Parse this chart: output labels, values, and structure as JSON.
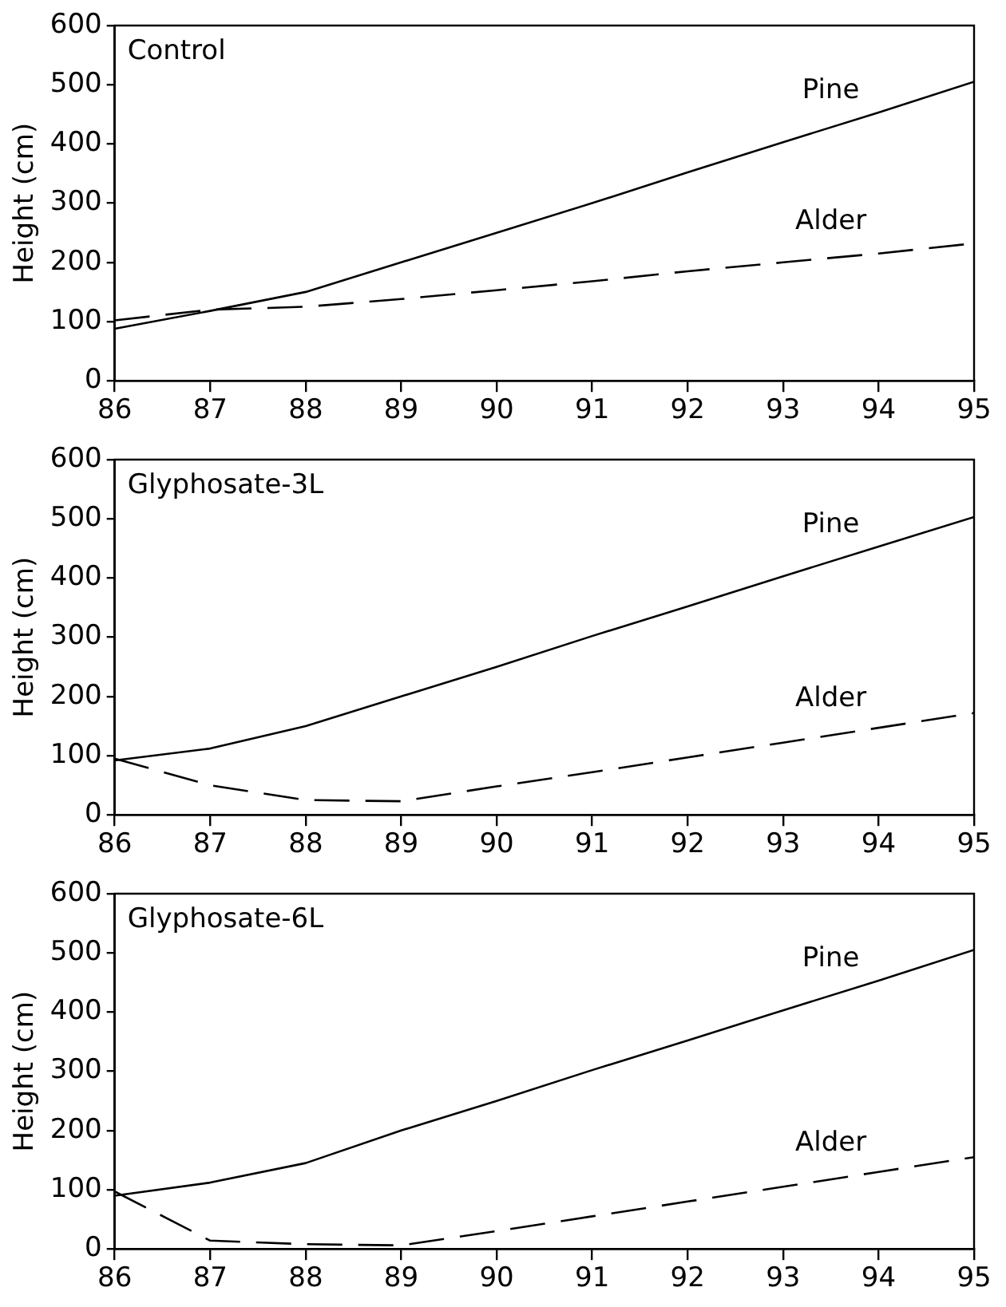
{
  "chart_data": [
    {
      "type": "line",
      "title": "Control",
      "ylabel": "Height (cm)",
      "x": [
        86,
        87,
        88,
        89,
        90,
        91,
        92,
        93,
        94,
        95
      ],
      "xlim": [
        86,
        95
      ],
      "xticks": [
        86,
        87,
        88,
        89,
        90,
        91,
        92,
        93,
        94,
        95
      ],
      "ylim": [
        0,
        600
      ],
      "yticks": [
        0,
        100,
        200,
        300,
        400,
        500,
        600
      ],
      "grid": false,
      "legend": false,
      "marker": "none",
      "series": [
        {
          "name": "Pine",
          "color": "#000000",
          "line_style": "solid",
          "values": [
            88,
            118,
            150,
            200,
            250,
            300,
            352,
            403,
            453,
            505
          ]
        },
        {
          "name": "Alder",
          "color": "#000000",
          "line_style": "dashed",
          "values": [
            102,
            120,
            125,
            138,
            153,
            168,
            185,
            200,
            215,
            232
          ]
        }
      ]
    },
    {
      "type": "line",
      "title": "Glyphosate-3L",
      "ylabel": "Height (cm)",
      "x": [
        86,
        87,
        88,
        89,
        90,
        91,
        92,
        93,
        94,
        95
      ],
      "xlim": [
        86,
        95
      ],
      "xticks": [
        86,
        87,
        88,
        89,
        90,
        91,
        92,
        93,
        94,
        95
      ],
      "ylim": [
        0,
        600
      ],
      "yticks": [
        0,
        100,
        200,
        300,
        400,
        500,
        600
      ],
      "grid": false,
      "legend": false,
      "marker": "none",
      "series": [
        {
          "name": "Pine",
          "color": "#000000",
          "line_style": "solid",
          "values": [
            92,
            112,
            150,
            200,
            250,
            302,
            352,
            403,
            453,
            503
          ]
        },
        {
          "name": "Alder",
          "color": "#000000",
          "line_style": "dashed",
          "values": [
            95,
            50,
            25,
            23,
            48,
            72,
            97,
            122,
            147,
            172
          ]
        }
      ]
    },
    {
      "type": "line",
      "title": "Glyphosate-6L",
      "ylabel": "Height (cm)",
      "x": [
        86,
        87,
        88,
        89,
        90,
        91,
        92,
        93,
        94,
        95
      ],
      "xlim": [
        86,
        95
      ],
      "xticks": [
        86,
        87,
        88,
        89,
        90,
        91,
        92,
        93,
        94,
        95
      ],
      "ylim": [
        0,
        600
      ],
      "yticks": [
        0,
        100,
        200,
        300,
        400,
        500,
        600
      ],
      "grid": false,
      "legend": false,
      "marker": "none",
      "series": [
        {
          "name": "Pine",
          "color": "#000000",
          "line_style": "solid",
          "values": [
            90,
            112,
            145,
            200,
            250,
            302,
            352,
            403,
            453,
            505
          ]
        },
        {
          "name": "Alder",
          "color": "#000000",
          "line_style": "dashed",
          "values": [
            97,
            14,
            8,
            6,
            30,
            55,
            80,
            105,
            130,
            155
          ]
        }
      ]
    }
  ]
}
